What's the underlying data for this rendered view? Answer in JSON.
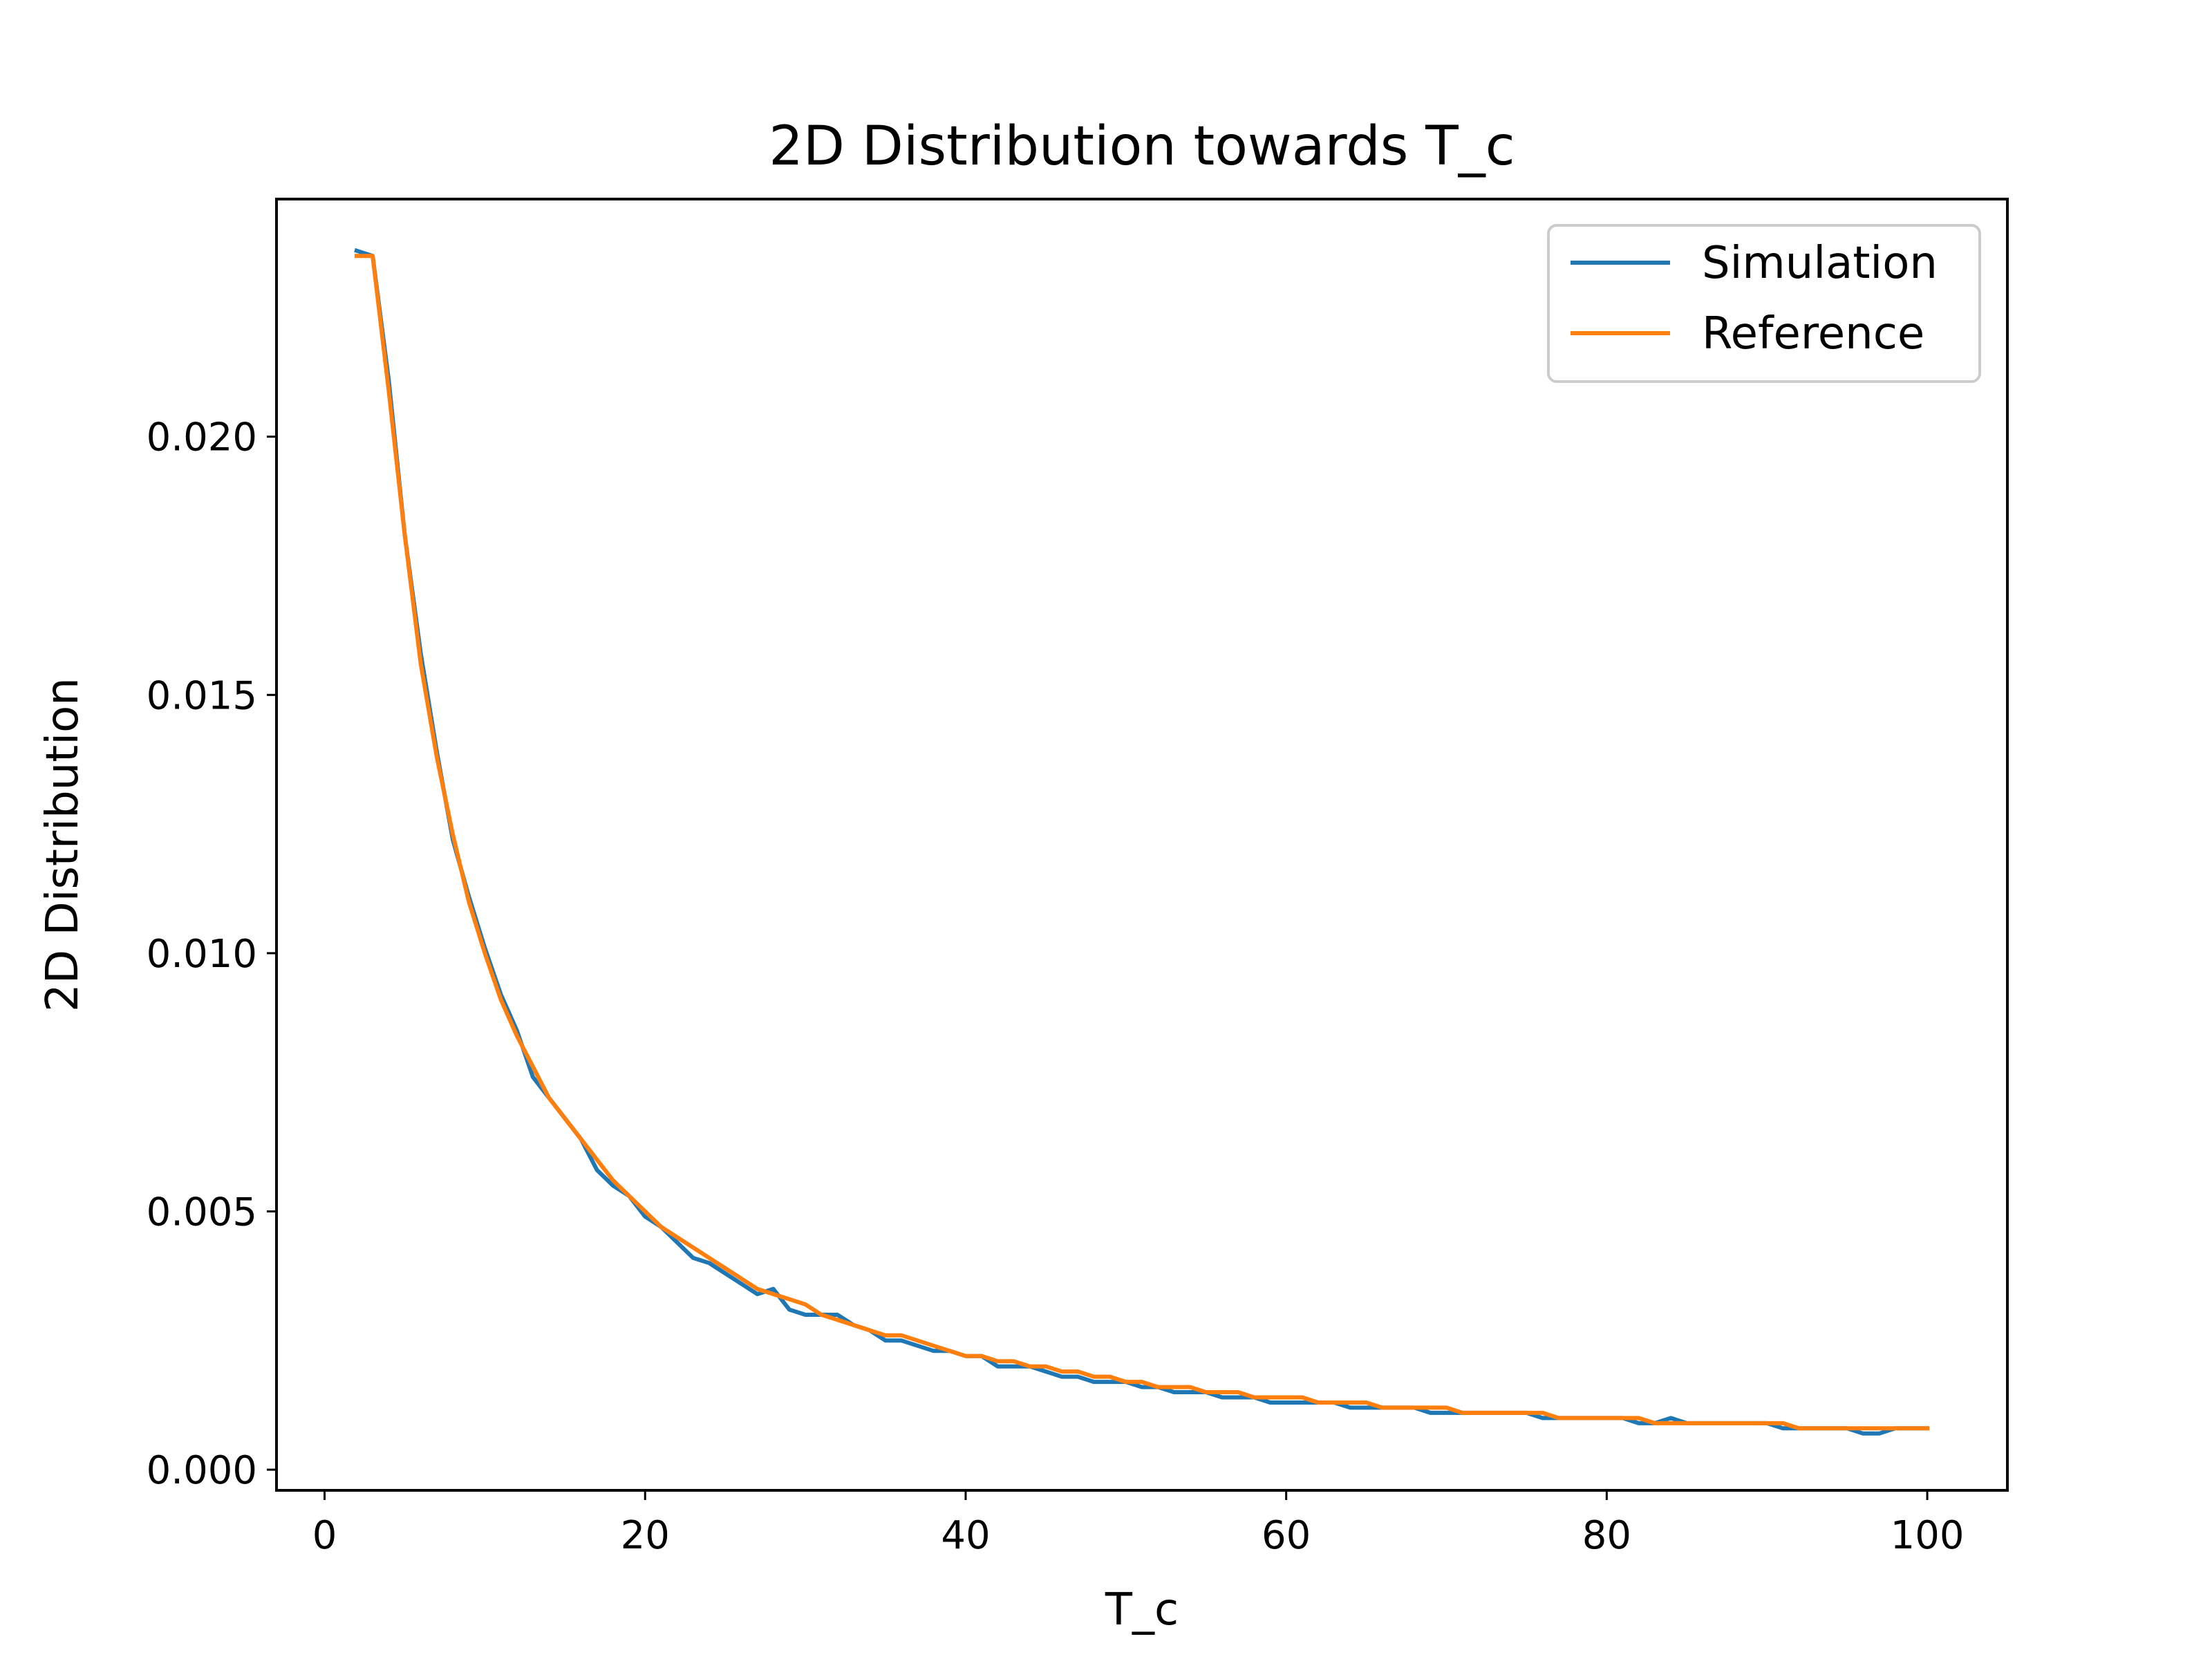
{
  "chart_data": {
    "type": "line",
    "title": "2D Distribution towards T_c",
    "xlabel": "T_c",
    "ylabel": "2D Distribution",
    "xlim": [
      -3,
      105
    ],
    "ylim": [
      -0.0004,
      0.0246
    ],
    "xticks": [
      0,
      20,
      40,
      60,
      80,
      100
    ],
    "xtick_labels": [
      "0",
      "20",
      "40",
      "60",
      "80",
      "100"
    ],
    "yticks": [
      0,
      0.005,
      0.01,
      0.015,
      0.02
    ],
    "ytick_labels": [
      "0.000",
      "0.005",
      "0.010",
      "0.015",
      "0.020"
    ],
    "grid": false,
    "legend_position": "top-right",
    "x": [
      2,
      3,
      4,
      5,
      6,
      7,
      8,
      9,
      10,
      11,
      12,
      13,
      14,
      15,
      16,
      17,
      18,
      19,
      20,
      21,
      22,
      23,
      24,
      25,
      26,
      27,
      28,
      29,
      30,
      31,
      32,
      33,
      34,
      35,
      36,
      37,
      38,
      39,
      40,
      41,
      42,
      43,
      44,
      45,
      46,
      47,
      48,
      49,
      50,
      51,
      52,
      53,
      54,
      55,
      56,
      57,
      58,
      59,
      60,
      61,
      62,
      63,
      64,
      65,
      66,
      67,
      68,
      69,
      70,
      71,
      72,
      73,
      74,
      75,
      76,
      77,
      78,
      79,
      80,
      81,
      82,
      83,
      84,
      85,
      86,
      87,
      88,
      89,
      90,
      91,
      92,
      93,
      94,
      95,
      96,
      97,
      98,
      99,
      100
    ],
    "series": [
      {
        "name": "Simulation",
        "color": "#1f77b4",
        "values": [
          0.0236,
          0.0235,
          0.0211,
          0.0181,
          0.0158,
          0.0139,
          0.0122,
          0.0111,
          0.0101,
          0.0092,
          0.0085,
          0.0076,
          0.0072,
          0.0068,
          0.0064,
          0.0058,
          0.0055,
          0.0053,
          0.0049,
          0.0047,
          0.0044,
          0.0041,
          0.004,
          0.0038,
          0.0036,
          0.0034,
          0.0035,
          0.0031,
          0.003,
          0.003,
          0.003,
          0.0028,
          0.0027,
          0.0025,
          0.0025,
          0.0024,
          0.0023,
          0.0023,
          0.0022,
          0.0022,
          0.002,
          0.002,
          0.002,
          0.0019,
          0.0018,
          0.0018,
          0.0017,
          0.0017,
          0.0017,
          0.0016,
          0.0016,
          0.0015,
          0.0015,
          0.0015,
          0.0014,
          0.0014,
          0.0014,
          0.0013,
          0.0013,
          0.0013,
          0.0013,
          0.0013,
          0.0012,
          0.0012,
          0.0012,
          0.0012,
          0.0012,
          0.0011,
          0.0011,
          0.0011,
          0.0011,
          0.0011,
          0.0011,
          0.0011,
          0.001,
          0.001,
          0.001,
          0.001,
          0.001,
          0.001,
          0.0009,
          0.0009,
          0.001,
          0.0009,
          0.0009,
          0.0009,
          0.0009,
          0.0009,
          0.0009,
          0.0008,
          0.0008,
          0.0008,
          0.0008,
          0.0008,
          0.0007,
          0.0007,
          0.0008,
          0.0008,
          0.0008
        ]
      },
      {
        "name": "Reference",
        "color": "#ff7f0e",
        "values": [
          0.0235,
          0.0235,
          0.0209,
          0.0181,
          0.0156,
          0.0138,
          0.0123,
          0.011,
          0.01,
          0.0091,
          0.0084,
          0.0078,
          0.0072,
          0.0068,
          0.0064,
          0.006,
          0.0056,
          0.0053,
          0.005,
          0.0047,
          0.0045,
          0.0043,
          0.0041,
          0.0039,
          0.0037,
          0.0035,
          0.0034,
          0.0033,
          0.0032,
          0.003,
          0.0029,
          0.0028,
          0.0027,
          0.0026,
          0.0026,
          0.0025,
          0.0024,
          0.0023,
          0.0022,
          0.0022,
          0.0021,
          0.0021,
          0.002,
          0.002,
          0.0019,
          0.0019,
          0.0018,
          0.0018,
          0.0017,
          0.0017,
          0.0016,
          0.0016,
          0.0016,
          0.0015,
          0.0015,
          0.0015,
          0.0014,
          0.0014,
          0.0014,
          0.0014,
          0.0013,
          0.0013,
          0.0013,
          0.0013,
          0.0012,
          0.0012,
          0.0012,
          0.0012,
          0.0012,
          0.0011,
          0.0011,
          0.0011,
          0.0011,
          0.0011,
          0.0011,
          0.001,
          0.001,
          0.001,
          0.001,
          0.001,
          0.001,
          0.0009,
          0.0009,
          0.0009,
          0.0009,
          0.0009,
          0.0009,
          0.0009,
          0.0009,
          0.0009,
          0.0008,
          0.0008,
          0.0008,
          0.0008,
          0.0008,
          0.0008,
          0.0008,
          0.0008,
          0.0008
        ]
      }
    ]
  }
}
